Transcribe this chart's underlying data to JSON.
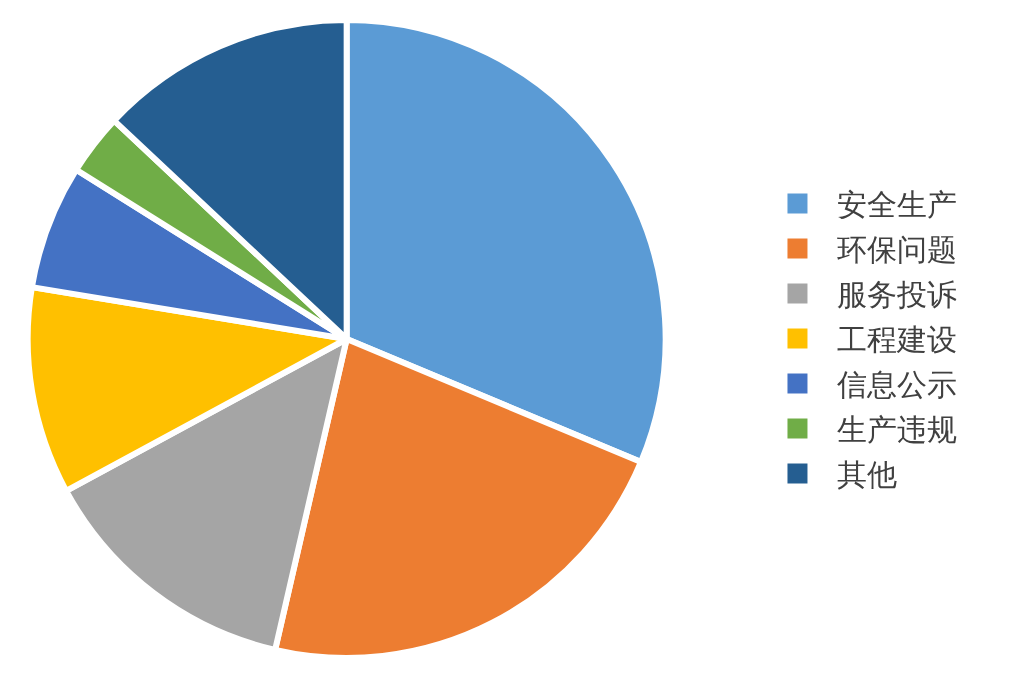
{
  "chart_data": {
    "type": "pie",
    "categories": [
      "安全生产",
      "环保问题",
      "服务投诉",
      "工程建设",
      "信息公示",
      "生产违规",
      "其他"
    ],
    "values": [
      31.3,
      22.3,
      13.5,
      10.5,
      6.3,
      3.1,
      13.0
    ],
    "colors": [
      "#5b9bd5",
      "#ed7d31",
      "#a5a5a5",
      "#ffc000",
      "#4472c4",
      "#70ad47",
      "#255e91"
    ],
    "legend": "right"
  }
}
